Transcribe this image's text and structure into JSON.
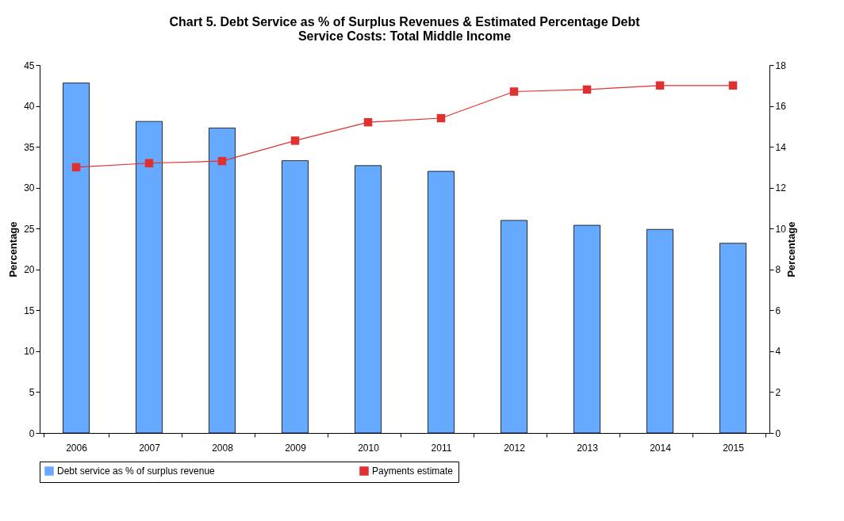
{
  "chart_data": {
    "type": "bar",
    "title": "Chart 5. Debt Service as % of Surplus Revenues & Estimated Percentage Debt Service Costs: Total Middle Income",
    "ylabel": "Percentage",
    "y2label": "Percentage",
    "categories": [
      "2006",
      "2007",
      "2008",
      "2009",
      "2010",
      "2011",
      "2012",
      "2013",
      "2014",
      "2015"
    ],
    "series": [
      {
        "name": "Debt service as % of surplus revenue",
        "color": "#66aaff",
        "values": [
          42.8,
          38.1,
          37.3,
          33.3,
          32.7,
          32.0,
          26.0,
          25.4,
          24.9,
          23.2
        ]
      },
      {
        "name": "Payments estimate",
        "type": "line",
        "axis": "y2",
        "color": "#e03030",
        "marker": "square",
        "values": [
          13.0,
          13.2,
          13.3,
          14.3,
          15.2,
          15.4,
          16.7,
          16.8,
          17.0,
          17.0
        ]
      }
    ],
    "ylim": [
      0,
      45
    ],
    "yticks": [
      0,
      5,
      10,
      15,
      20,
      25,
      30,
      35,
      40,
      45
    ],
    "y2lim": [
      0,
      18
    ],
    "y2ticks": [
      0,
      2,
      4,
      6,
      8,
      10,
      12,
      14,
      16,
      18
    ],
    "legend": "bottom",
    "grid": false
  }
}
